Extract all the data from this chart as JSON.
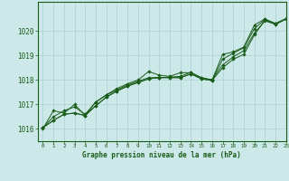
{
  "title": "Graphe pression niveau de la mer (hPa)",
  "bg_color": "#cce8e8",
  "grid_color": "#aad0d0",
  "line_color": "#1a5c1a",
  "xlim": [
    -0.5,
    23
  ],
  "ylim": [
    1015.5,
    1021.2
  ],
  "yticks": [
    1016,
    1017,
    1018,
    1019,
    1020
  ],
  "xticks": [
    0,
    1,
    2,
    3,
    4,
    5,
    6,
    7,
    8,
    9,
    10,
    11,
    12,
    13,
    14,
    15,
    16,
    17,
    18,
    19,
    20,
    21,
    22,
    23
  ],
  "series": [
    [
      1016.05,
      1016.5,
      1016.75,
      1016.9,
      1016.6,
      1017.1,
      1017.4,
      1017.65,
      1017.85,
      1018.0,
      1018.35,
      1018.2,
      1018.15,
      1018.3,
      1018.3,
      1018.1,
      1018.0,
      1019.05,
      1019.15,
      1019.35,
      1020.25,
      1020.5,
      1020.3,
      1020.5
    ],
    [
      1016.05,
      1016.35,
      1016.6,
      1016.65,
      1016.55,
      1016.95,
      1017.3,
      1017.55,
      1017.75,
      1017.9,
      1018.05,
      1018.1,
      1018.1,
      1018.1,
      1018.25,
      1018.05,
      1017.98,
      1018.85,
      1019.1,
      1019.32,
      1020.1,
      1020.48,
      1020.32,
      1020.52
    ],
    [
      1016.05,
      1016.35,
      1016.6,
      1016.65,
      1016.55,
      1016.95,
      1017.3,
      1017.55,
      1017.75,
      1017.9,
      1018.05,
      1018.1,
      1018.1,
      1018.1,
      1018.25,
      1018.05,
      1017.98,
      1018.5,
      1018.85,
      1019.05,
      1019.85,
      1020.45,
      1020.28,
      1020.5
    ],
    [
      1016.0,
      1016.75,
      1016.65,
      1017.0,
      1016.55,
      1017.1,
      1017.38,
      1017.6,
      1017.8,
      1017.95,
      1018.1,
      1018.1,
      1018.12,
      1018.15,
      1018.32,
      1018.08,
      1018.02,
      1018.62,
      1018.95,
      1019.2,
      1019.92,
      1020.42,
      1020.28,
      1020.5
    ]
  ]
}
